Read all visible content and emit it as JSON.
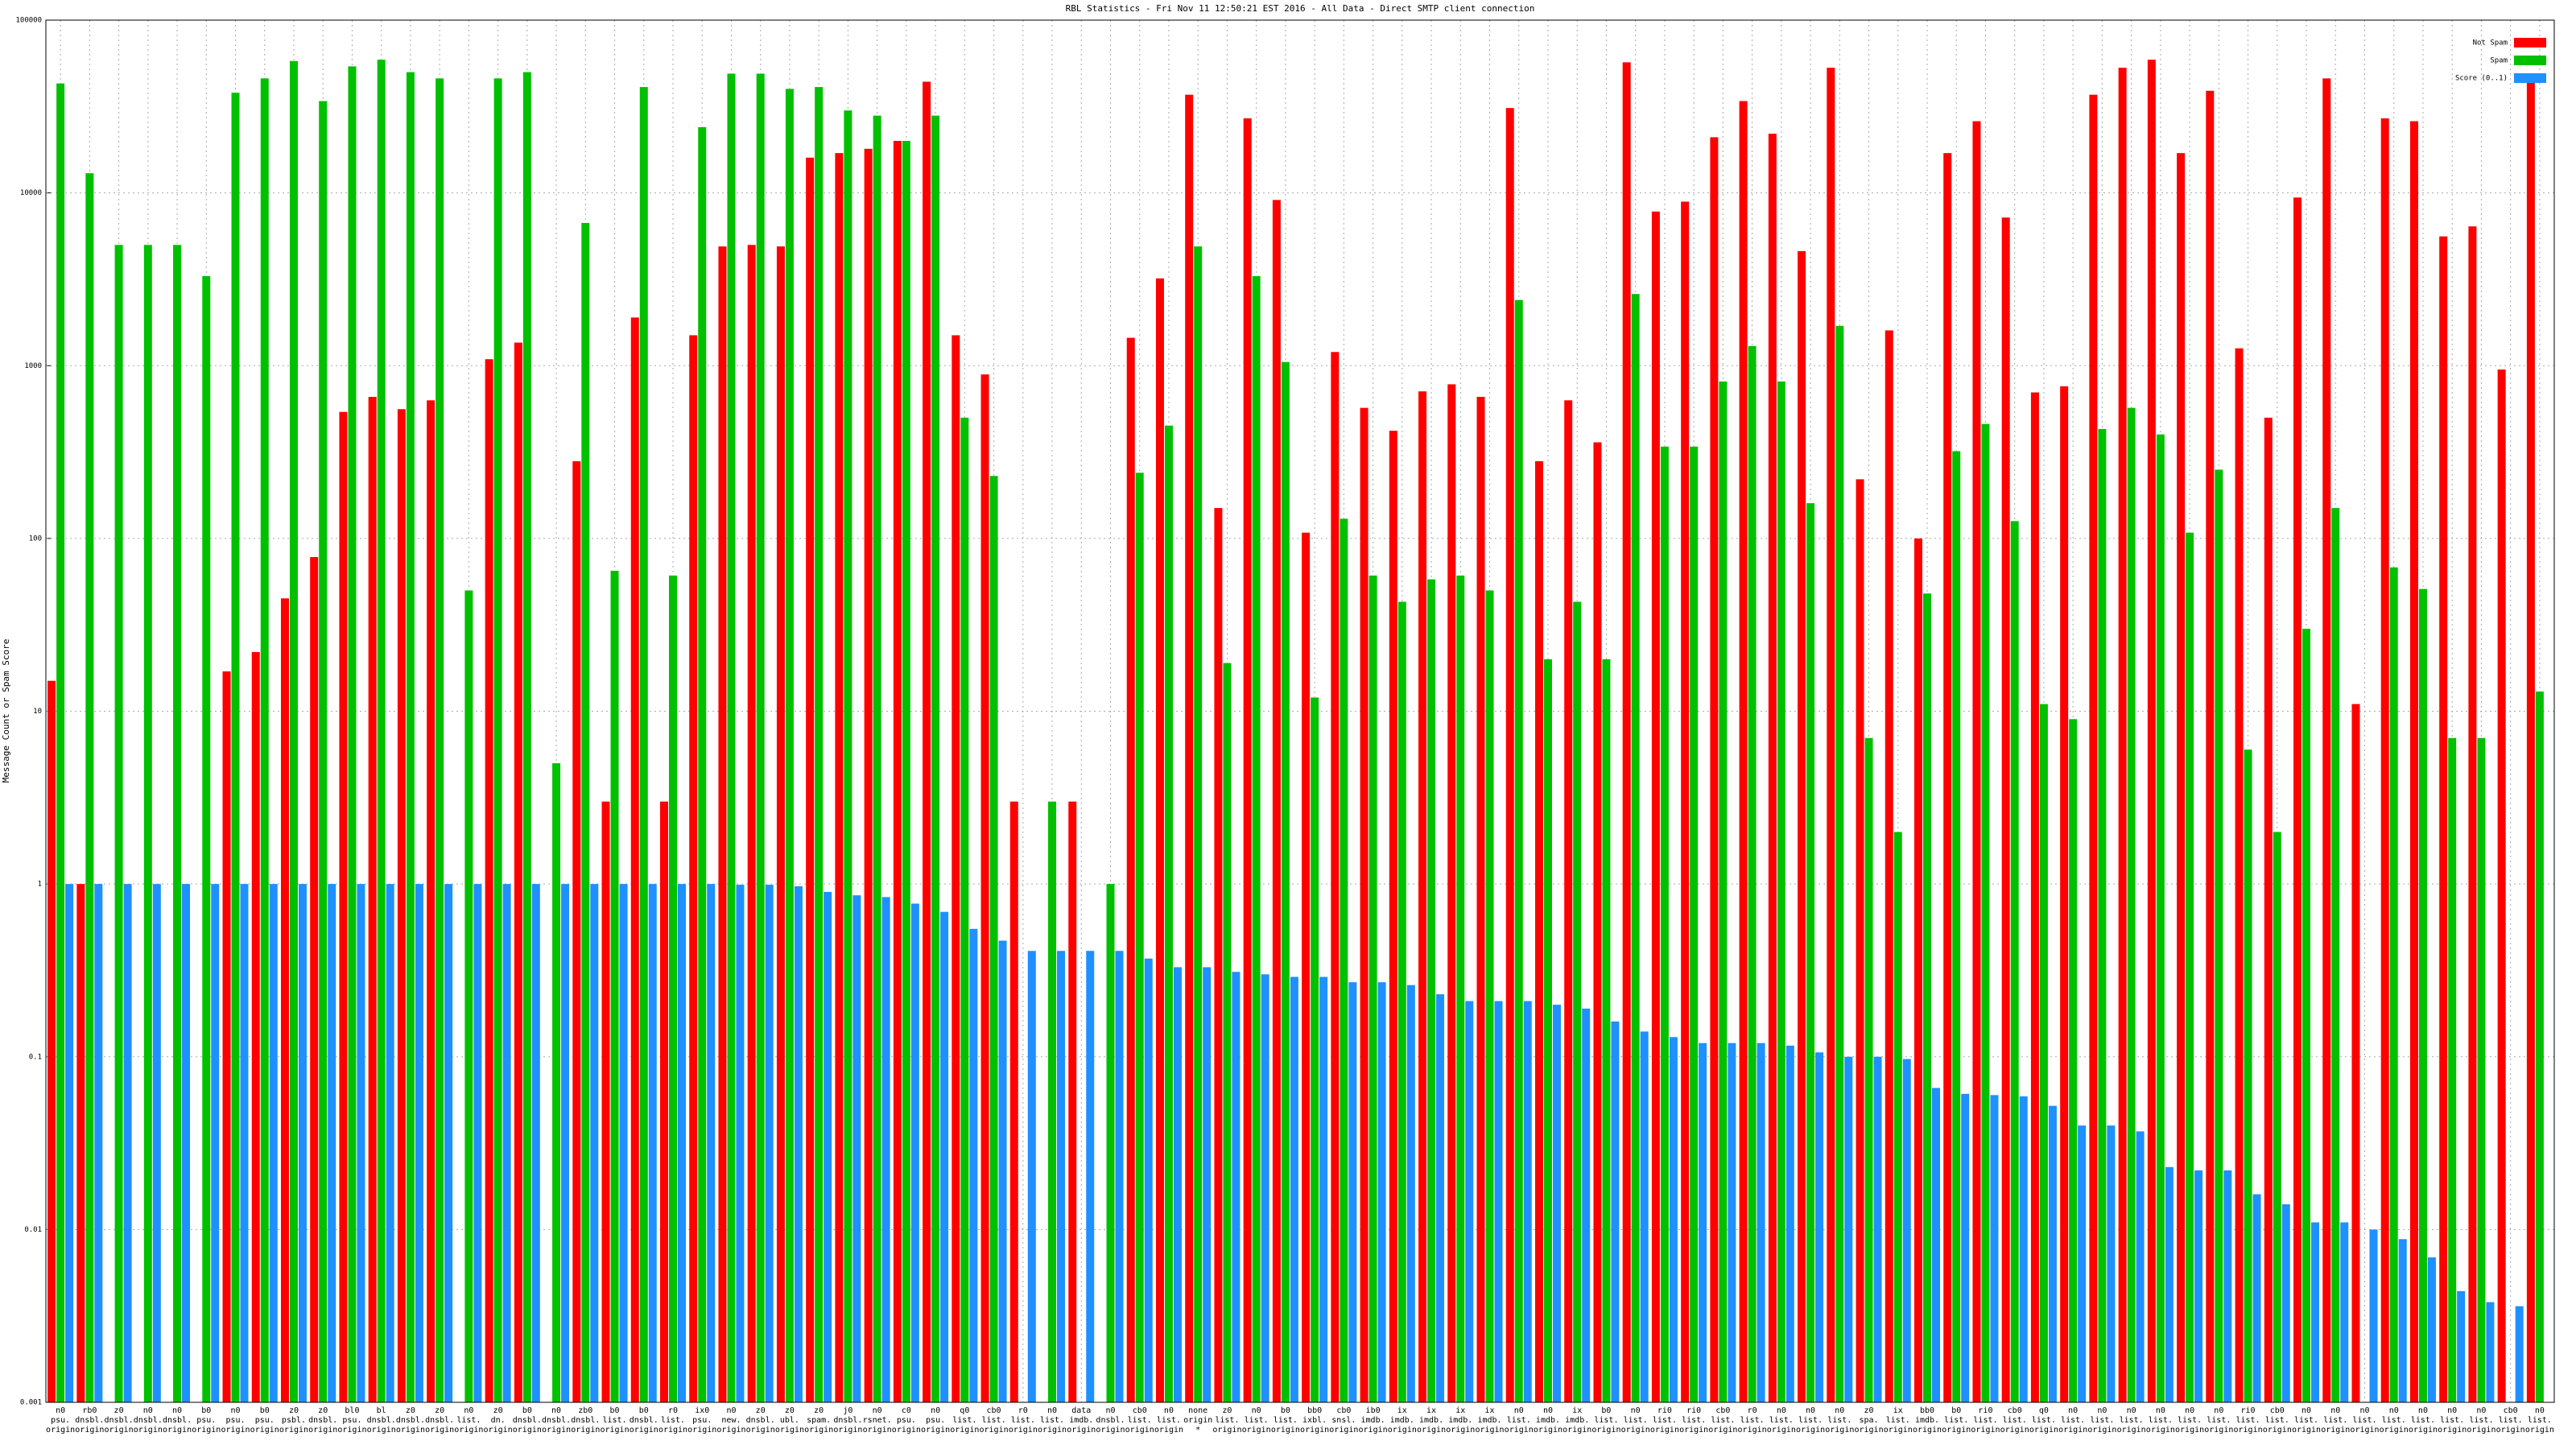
{
  "chart_data": {
    "type": "bar",
    "title": "RBL Statistics - Fri Nov 11 12:50:21 EST 2016 - All Data - Direct SMTP client connection",
    "y_label": "Message Count or Spam Score",
    "log_scale": true,
    "grid": true,
    "legend_position": "top-right",
    "ylim": [
      0.001,
      100000
    ],
    "yticks": [
      0.001,
      0.01,
      0.1,
      1,
      10,
      100,
      1000,
      10000,
      100000
    ],
    "categories": [
      [
        "n0",
        "psu.",
        "origin"
      ],
      [
        "rb0",
        "dnsbl.",
        "origin"
      ],
      [
        "z0",
        "dnsbl.",
        "origin"
      ],
      [
        "n0",
        "dnsbl.",
        "origin"
      ],
      [
        "n0",
        "dnsbl.",
        "origin"
      ],
      [
        "b0",
        "psu.",
        "origin"
      ],
      [
        "n0",
        "psu.",
        "origin"
      ],
      [
        "b0",
        "psu.",
        "origin"
      ],
      [
        "z0",
        "psbl.",
        "origin"
      ],
      [
        "z0",
        "dnsbl.",
        "origin"
      ],
      [
        "bl0",
        "psu.",
        "origin"
      ],
      [
        "bl",
        "dnsbl.",
        "origin"
      ],
      [
        "z0",
        "dnsbl.",
        "origin"
      ],
      [
        "z0",
        "dnsbl.",
        "origin"
      ],
      [
        "n0",
        "list.",
        "origin"
      ],
      [
        "z0",
        "dn.",
        "origin"
      ],
      [
        "b0",
        "dnsbl.",
        "origin"
      ],
      [
        "n0",
        "dnsbl.",
        "origin"
      ],
      [
        "zb0",
        "dnsbl.",
        "origin"
      ],
      [
        "b0",
        "list.",
        "origin"
      ],
      [
        "b0",
        "dnsbl.",
        "origin"
      ],
      [
        "r0",
        "list.",
        "origin"
      ],
      [
        "ix0",
        "psu.",
        "origin"
      ],
      [
        "n0",
        "new.",
        "origin"
      ],
      [
        "z0",
        "dnsbl.",
        "origin"
      ],
      [
        "z0",
        "ubl.",
        "origin"
      ],
      [
        "z0",
        "spam.",
        "origin"
      ],
      [
        "j0",
        "dnsbl.",
        "origin"
      ],
      [
        "n0",
        "rsnet.",
        "origin"
      ],
      [
        "c0",
        "psu.",
        "origin"
      ],
      [
        "n0",
        "psu.",
        "origin"
      ],
      [
        "q0",
        "list.",
        "origin"
      ],
      [
        "cb0",
        "list.",
        "origin"
      ],
      [
        "r0",
        "list.",
        "origin"
      ],
      [
        "n0",
        "list.",
        "origin"
      ],
      [
        "data",
        "imdb.",
        "origin"
      ],
      [
        "n0",
        "dnsbl.",
        "origin"
      ],
      [
        "cb0",
        "list.",
        "origin"
      ],
      [
        "n0",
        "list.",
        "origin"
      ],
      [
        "none",
        "origin",
        "*"
      ],
      [
        "z0",
        "list.",
        "origin"
      ],
      [
        "n0",
        "list.",
        "origin"
      ],
      [
        "b0",
        "list.",
        "origin"
      ],
      [
        "bb0",
        "ixbl.",
        "origin"
      ],
      [
        "cb0",
        "snsl.",
        "origin"
      ],
      [
        "ib0",
        "imdb.",
        "origin"
      ],
      [
        "ix",
        "imdb.",
        "origin"
      ],
      [
        "ix",
        "imdb.",
        "origin"
      ],
      [
        "ix",
        "imdb.",
        "origin"
      ],
      [
        "ix",
        "imdb.",
        "origin"
      ],
      [
        "n0",
        "list.",
        "origin"
      ],
      [
        "n0",
        "imdb.",
        "origin"
      ],
      [
        "ix",
        "imdb.",
        "origin"
      ],
      [
        "b0",
        "list.",
        "origin"
      ],
      [
        "n0",
        "list.",
        "origin"
      ],
      [
        "ri0",
        "list.",
        "origin"
      ],
      [
        "ri0",
        "list.",
        "origin"
      ],
      [
        "cb0",
        "list.",
        "origin"
      ],
      [
        "r0",
        "list.",
        "origin"
      ],
      [
        "n0",
        "list.",
        "origin"
      ],
      [
        "n0",
        "list.",
        "origin"
      ],
      [
        "n0",
        "list.",
        "origin"
      ],
      [
        "z0",
        "spa.",
        "origin"
      ],
      [
        "ix",
        "list.",
        "origin"
      ],
      [
        "bb0",
        "imdb.",
        "origin"
      ],
      [
        "b0",
        "list.",
        "origin"
      ],
      [
        "ri0",
        "list.",
        "origin"
      ],
      [
        "cb0",
        "list.",
        "origin"
      ],
      [
        "q0",
        "list.",
        "origin"
      ],
      [
        "n0",
        "list.",
        "origin"
      ],
      [
        "n0",
        "list.",
        "origin"
      ],
      [
        "n0",
        "list.",
        "origin"
      ],
      [
        "n0",
        "list.",
        "origin"
      ],
      [
        "n0",
        "list.",
        "origin"
      ],
      [
        "n0",
        "list.",
        "origin"
      ],
      [
        "ri0",
        "list.",
        "origin"
      ],
      [
        "cb0",
        "list.",
        "origin"
      ],
      [
        "n0",
        "list.",
        "origin"
      ],
      [
        "n0",
        "list.",
        "origin"
      ],
      [
        "n0",
        "list.",
        "origin"
      ],
      [
        "n0",
        "list.",
        "origin"
      ],
      [
        "n0",
        "list.",
        "origin"
      ],
      [
        "n0",
        "list.",
        "origin"
      ],
      [
        "n0",
        "list.",
        "origin"
      ],
      [
        "cb0",
        "list.",
        "origin"
      ],
      [
        "n0",
        "list.",
        "origin"
      ]
    ],
    "series": [
      {
        "name": "Not Spam",
        "color": "#ff0000",
        "values": [
          15,
          1,
          null,
          null,
          null,
          null,
          17,
          22,
          45,
          78,
          540,
          660,
          560,
          630,
          null,
          1090,
          1360,
          null,
          280,
          3,
          1900,
          3,
          1500,
          4900,
          5000,
          4900,
          16000,
          17000,
          18000,
          20000,
          44000,
          1500,
          890,
          3,
          null,
          3,
          null,
          1450,
          3200,
          37000,
          150,
          27000,
          9100,
          108,
          1200,
          570,
          420,
          710,
          780,
          660,
          31000,
          280,
          630,
          360,
          57000,
          7800,
          8900,
          21000,
          34000,
          22000,
          4600,
          53000,
          220,
          1600,
          100,
          17000,
          26000,
          7200,
          700,
          760,
          37000,
          53000,
          59000,
          17000,
          39000,
          1260,
          500,
          9400,
          46000,
          11,
          27000,
          26000,
          5600,
          6400,
          950,
          46000
        ]
      },
      {
        "name": "Spam",
        "color": "#00c000",
        "values": [
          43000,
          13000,
          5000,
          5000,
          5000,
          3300,
          38000,
          46000,
          58000,
          34000,
          54000,
          59000,
          50000,
          46000,
          50,
          46000,
          50000,
          5,
          6700,
          65,
          41000,
          61,
          24000,
          49000,
          49000,
          40000,
          41000,
          30000,
          28000,
          20000,
          28000,
          500,
          230,
          null,
          3,
          null,
          1,
          240,
          450,
          4900,
          19,
          3300,
          1050,
          12,
          130,
          61,
          43,
          58,
          61,
          50,
          2400,
          20,
          43,
          20,
          2600,
          340,
          340,
          810,
          1300,
          810,
          160,
          1700,
          7,
          2,
          48,
          320,
          460,
          126,
          11,
          9,
          430,
          570,
          400,
          108,
          250,
          6,
          2,
          30,
          150,
          null,
          68,
          51,
          7,
          7,
          null,
          13
        ]
      },
      {
        "name": "Score (0..1)",
        "color": "#1e90ff",
        "values": [
          1,
          1,
          1,
          1,
          1,
          1,
          1,
          1,
          1,
          1,
          1,
          1,
          1,
          1,
          1,
          1,
          1,
          1,
          1,
          1,
          1,
          1,
          1,
          0.99,
          0.99,
          0.97,
          0.9,
          0.86,
          0.84,
          0.77,
          0.69,
          0.55,
          0.47,
          0.41,
          0.41,
          0.41,
          0.41,
          0.37,
          0.33,
          0.33,
          0.31,
          0.3,
          0.29,
          0.29,
          0.27,
          0.27,
          0.26,
          0.23,
          0.21,
          0.21,
          0.21,
          0.2,
          0.19,
          0.16,
          0.14,
          0.13,
          0.12,
          0.12,
          0.12,
          0.116,
          0.106,
          0.1,
          0.1,
          0.097,
          0.066,
          0.061,
          0.06,
          0.059,
          0.052,
          0.04,
          0.04,
          0.037,
          0.023,
          0.022,
          0.022,
          0.016,
          0.014,
          0.011,
          0.011,
          0.01,
          0.0088,
          0.0069,
          0.0044,
          0.0038,
          0.0036,
          null
        ]
      }
    ]
  }
}
